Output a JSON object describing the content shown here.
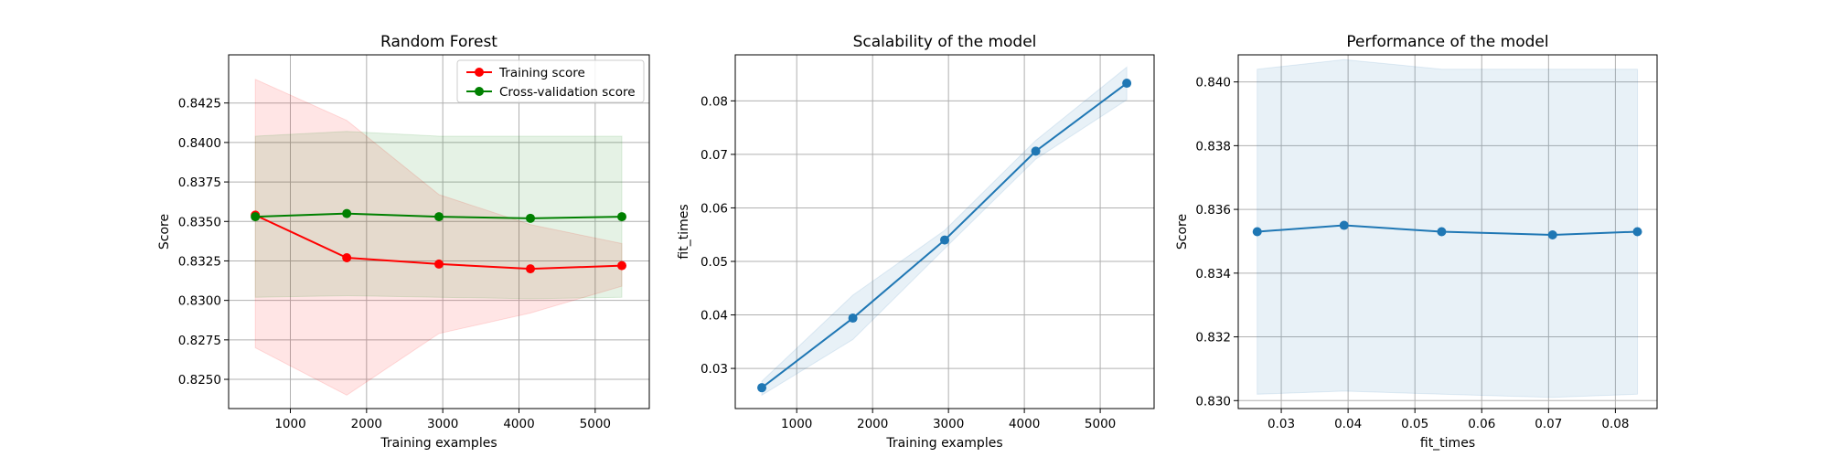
{
  "chart_data": [
    {
      "type": "line",
      "title": "Random Forest",
      "xlabel": "Training examples",
      "ylabel": "Score",
      "xlim": [
        190,
        5710
      ],
      "ylim": [
        0.82315,
        0.84555
      ],
      "xticks": [
        1000,
        2000,
        3000,
        4000,
        5000
      ],
      "xtick_labels": [
        "1000",
        "2000",
        "3000",
        "4000",
        "5000"
      ],
      "yticks": [
        0.825,
        0.8275,
        0.83,
        0.8325,
        0.835,
        0.8375,
        0.84,
        0.8425
      ],
      "ytick_labels": [
        "0.8250",
        "0.8275",
        "0.8300",
        "0.8325",
        "0.8350",
        "0.8375",
        "0.8400",
        "0.8425"
      ],
      "grid": true,
      "legend": "upper right",
      "x": [
        540,
        1740,
        2950,
        4150,
        5350
      ],
      "series": [
        {
          "name": "Training score",
          "color": "#ff0000",
          "values": [
            0.8354,
            0.8327,
            0.8323,
            0.832,
            0.8322
          ],
          "band_lower": [
            0.827,
            0.824,
            0.8279,
            0.8292,
            0.8309
          ],
          "band_upper": [
            0.844,
            0.8414,
            0.8367,
            0.8348,
            0.8336
          ],
          "band_color": "#ff0000",
          "band_alpha": 0.1
        },
        {
          "name": "Cross-validation score",
          "color": "#008000",
          "values": [
            0.8353,
            0.8355,
            0.8353,
            0.8352,
            0.8353
          ],
          "band_lower": [
            0.8302,
            0.8303,
            0.8302,
            0.8301,
            0.8302
          ],
          "band_upper": [
            0.8404,
            0.8407,
            0.8404,
            0.8404,
            0.8404
          ],
          "band_color": "#008000",
          "band_alpha": 0.1
        }
      ]
    },
    {
      "type": "line",
      "title": "Scalability of the model",
      "xlabel": "Training examples",
      "ylabel": "fit_times",
      "xlim": [
        190,
        5710
      ],
      "ylim": [
        0.0225,
        0.0886
      ],
      "xticks": [
        1000,
        2000,
        3000,
        4000,
        5000
      ],
      "xtick_labels": [
        "1000",
        "2000",
        "3000",
        "4000",
        "5000"
      ],
      "yticks": [
        0.03,
        0.04,
        0.05,
        0.06,
        0.07,
        0.08
      ],
      "ytick_labels": [
        "0.03",
        "0.04",
        "0.05",
        "0.06",
        "0.07",
        "0.08"
      ],
      "grid": true,
      "x": [
        540,
        1740,
        2950,
        4150,
        5350
      ],
      "series": [
        {
          "color": "#1f77b4",
          "values": [
            0.0264,
            0.0394,
            0.054,
            0.0706,
            0.0833
          ],
          "band_lower": [
            0.025,
            0.0354,
            0.0524,
            0.0691,
            0.0802
          ],
          "band_upper": [
            0.0276,
            0.0437,
            0.0558,
            0.0726,
            0.0863
          ],
          "band_color": "#1f77b4",
          "band_alpha": 0.1
        }
      ]
    },
    {
      "type": "line",
      "title": "Performance of the model",
      "xlabel": "fit_times",
      "ylabel": "Score",
      "xlim": [
        0.02356,
        0.08624
      ],
      "ylim": [
        0.82975,
        0.84085
      ],
      "xticks": [
        0.03,
        0.04,
        0.05,
        0.06,
        0.07,
        0.08
      ],
      "xtick_labels": [
        "0.03",
        "0.04",
        "0.05",
        "0.06",
        "0.07",
        "0.08"
      ],
      "yticks": [
        0.83,
        0.832,
        0.834,
        0.836,
        0.838,
        0.84
      ],
      "ytick_labels": [
        "0.830",
        "0.832",
        "0.834",
        "0.836",
        "0.838",
        "0.840"
      ],
      "grid": true,
      "x": [
        0.0264,
        0.0394,
        0.054,
        0.0706,
        0.0833
      ],
      "series": [
        {
          "color": "#1f77b4",
          "values": [
            0.8353,
            0.8355,
            0.8353,
            0.8352,
            0.8353
          ],
          "band_lower": [
            0.8302,
            0.8303,
            0.8302,
            0.8301,
            0.8302
          ],
          "band_upper": [
            0.8404,
            0.8407,
            0.8404,
            0.8404,
            0.8404
          ],
          "band_color": "#1f77b4",
          "band_alpha": 0.1
        }
      ]
    }
  ]
}
